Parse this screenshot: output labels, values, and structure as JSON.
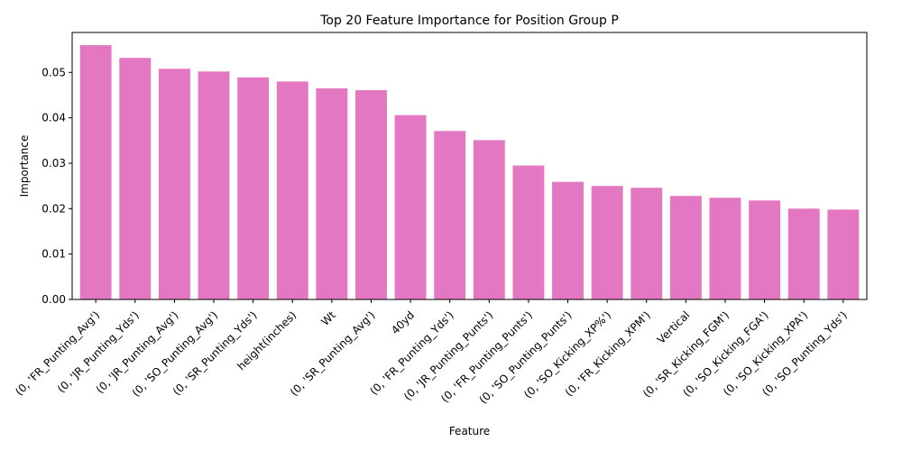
{
  "chart_data": {
    "type": "bar",
    "title": "Top 20 Feature Importance for Position Group P",
    "xlabel": "Feature",
    "ylabel": "Importance",
    "ylim": [
      0,
      0.0588
    ],
    "yticks": [
      0.0,
      0.01,
      0.02,
      0.03,
      0.04,
      0.05
    ],
    "ytick_labels": [
      "0.00",
      "0.01",
      "0.02",
      "0.03",
      "0.04",
      "0.05"
    ],
    "bar_color": "#e377c2",
    "grid": false,
    "categories": [
      "(0, 'FR_Punting_Avg')",
      "(0, 'JR_Punting_Yds')",
      "(0, 'JR_Punting_Avg')",
      "(0, 'SO_Punting_Avg')",
      "(0, 'SR_Punting_Yds')",
      "height(inches)",
      "Wt",
      "(0, 'SR_Punting_Avg')",
      "40yd",
      "(0, 'FR_Punting_Yds')",
      "(0, 'JR_Punting_Punts')",
      "(0, 'FR_Punting_Punts')",
      "(0, 'SO_Punting_Punts')",
      "(0, 'SO_Kicking_XP%')",
      "(0, 'FR_Kicking_XPM')",
      "Vertical",
      "(0, 'SR_Kicking_FGM')",
      "(0, 'SO_Kicking_FGA')",
      "(0, 'SO_Kicking_XPA')",
      "(0, 'SO_Punting_Yds')"
    ],
    "values": [
      0.056,
      0.0532,
      0.0508,
      0.0502,
      0.0489,
      0.048,
      0.0465,
      0.0461,
      0.0406,
      0.0371,
      0.0351,
      0.0295,
      0.0259,
      0.025,
      0.0246,
      0.0228,
      0.0224,
      0.0218,
      0.02,
      0.0198
    ]
  }
}
